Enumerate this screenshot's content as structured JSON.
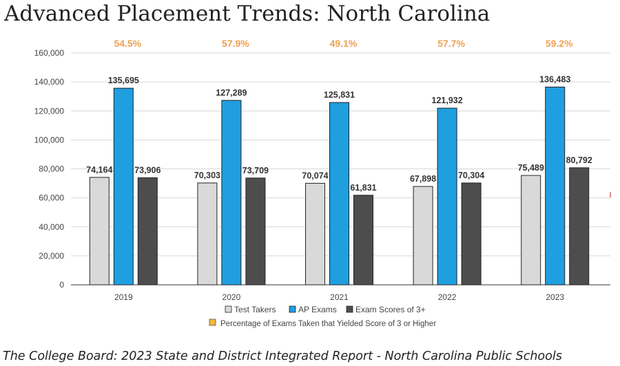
{
  "title": "Advanced Placement Trends: North Carolina",
  "caption": "The College Board: 2023 State and District Integrated Report - North Carolina Public Schools",
  "chart_data": {
    "type": "bar",
    "categories": [
      "2019",
      "2020",
      "2021",
      "2022",
      "2023"
    ],
    "series": [
      {
        "name": "Test Takers",
        "color": "#d9d9d9",
        "values": [
          74164,
          70303,
          70074,
          67898,
          75489
        ],
        "labels": [
          "74,164",
          "70,303",
          "70,074",
          "67,898",
          "75,489"
        ]
      },
      {
        "name": "AP Exams",
        "color": "#1f9ee0",
        "values": [
          135695,
          127289,
          125831,
          121932,
          136483
        ],
        "labels": [
          "135,695",
          "127,289",
          "125,831",
          "121,932",
          "136,483"
        ]
      },
      {
        "name": "Exam Scores of 3+",
        "color": "#4d4d4d",
        "values": [
          73906,
          73709,
          61831,
          70304,
          80792
        ],
        "labels": [
          "73,906",
          "73,709",
          "61,831",
          "70,304",
          "80,792"
        ]
      }
    ],
    "percentages": {
      "name": "Percentage of Exams Taken that Yielded Score of 3 or Higher",
      "color": "#f5b93a",
      "labels": [
        "54.5%",
        "57.9%",
        "49.1%",
        "57.7%",
        "59.2%"
      ]
    },
    "ylim": [
      0,
      160000
    ],
    "yticks": [
      "0",
      "20,000",
      "40,000",
      "60,000",
      "80,000",
      "100,000",
      "120,000",
      "140,000",
      "160,000"
    ],
    "grid": true,
    "legend_placement": "bottom"
  }
}
